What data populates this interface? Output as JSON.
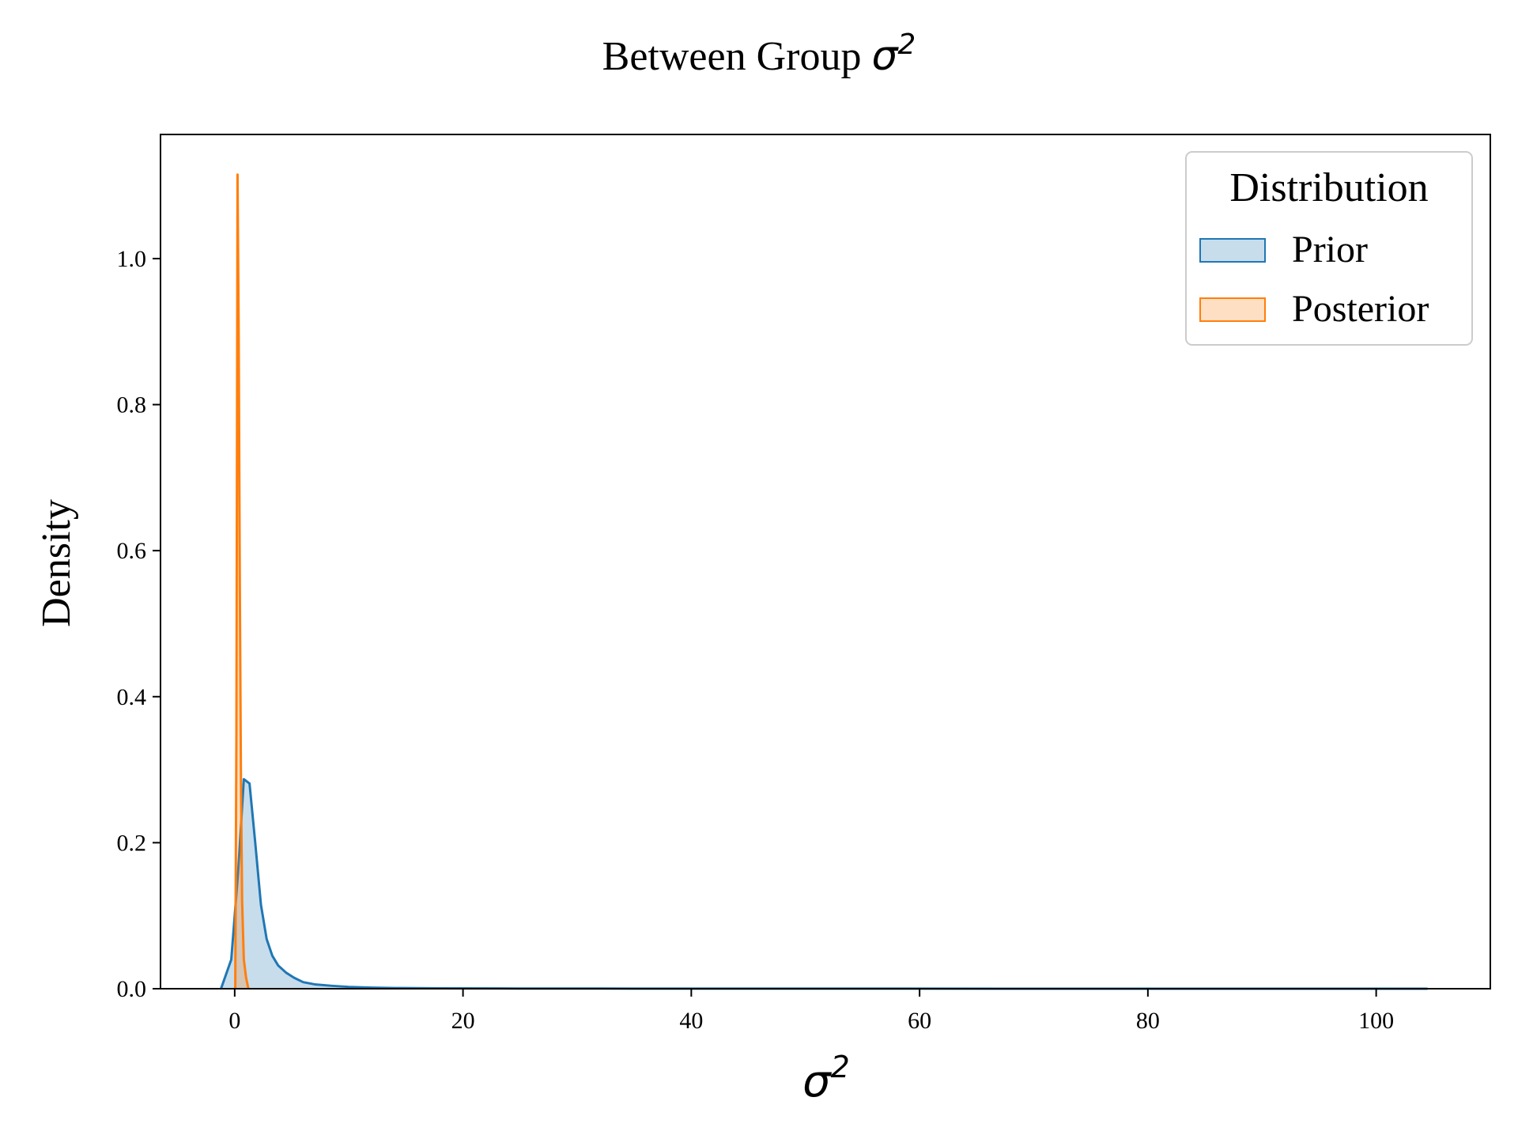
{
  "chart_data": {
    "type": "area",
    "title": "Between Group ",
    "title_symbol": "σ",
    "title_sup": "2",
    "xlabel_symbol": "σ",
    "xlabel_sup": "2",
    "ylabel": "Density",
    "xlim": [
      -6.5,
      110
    ],
    "ylim": [
      0,
      1.17
    ],
    "xticks": [
      0,
      20,
      40,
      60,
      80,
      100
    ],
    "xtick_labels": [
      "0",
      "20",
      "40",
      "60",
      "80",
      "100"
    ],
    "yticks": [
      0.0,
      0.2,
      0.4,
      0.6,
      0.8,
      1.0
    ],
    "ytick_labels": [
      "0.0",
      "0.2",
      "0.4",
      "0.6",
      "0.8",
      "1.0"
    ],
    "grid": false,
    "legend": {
      "title": "Distribution",
      "placement": "top-right"
    },
    "series": [
      {
        "name": "Prior",
        "color": "#1f77b4",
        "fill_color": "#1f77b4",
        "fill_opacity": 0.25,
        "x": [
          -1.2,
          -0.3,
          0.3,
          0.8,
          1.3,
          1.8,
          2.3,
          2.8,
          3.3,
          3.8,
          4.5,
          5.2,
          6.0,
          7.0,
          8.5,
          10,
          12,
          14,
          18,
          25,
          35,
          50,
          70,
          90,
          104.5
        ],
        "y": [
          0.0,
          0.04,
          0.16,
          0.287,
          0.281,
          0.2,
          0.115,
          0.068,
          0.045,
          0.032,
          0.022,
          0.015,
          0.009,
          0.006,
          0.004,
          0.0025,
          0.0015,
          0.001,
          0.0006,
          0.0003,
          0.0002,
          0.0001,
          5e-05,
          2e-05,
          0.0
        ]
      },
      {
        "name": "Posterior",
        "color": "#ff7f0e",
        "fill_color": "#ff7f0e",
        "fill_opacity": 0.25,
        "x": [
          0.05,
          0.15,
          0.25,
          0.35,
          0.45,
          0.55,
          0.65,
          0.8,
          1.0,
          1.2
        ],
        "y": [
          0.0,
          0.35,
          1.115,
          0.9,
          0.55,
          0.28,
          0.12,
          0.04,
          0.015,
          0.0
        ]
      }
    ]
  }
}
